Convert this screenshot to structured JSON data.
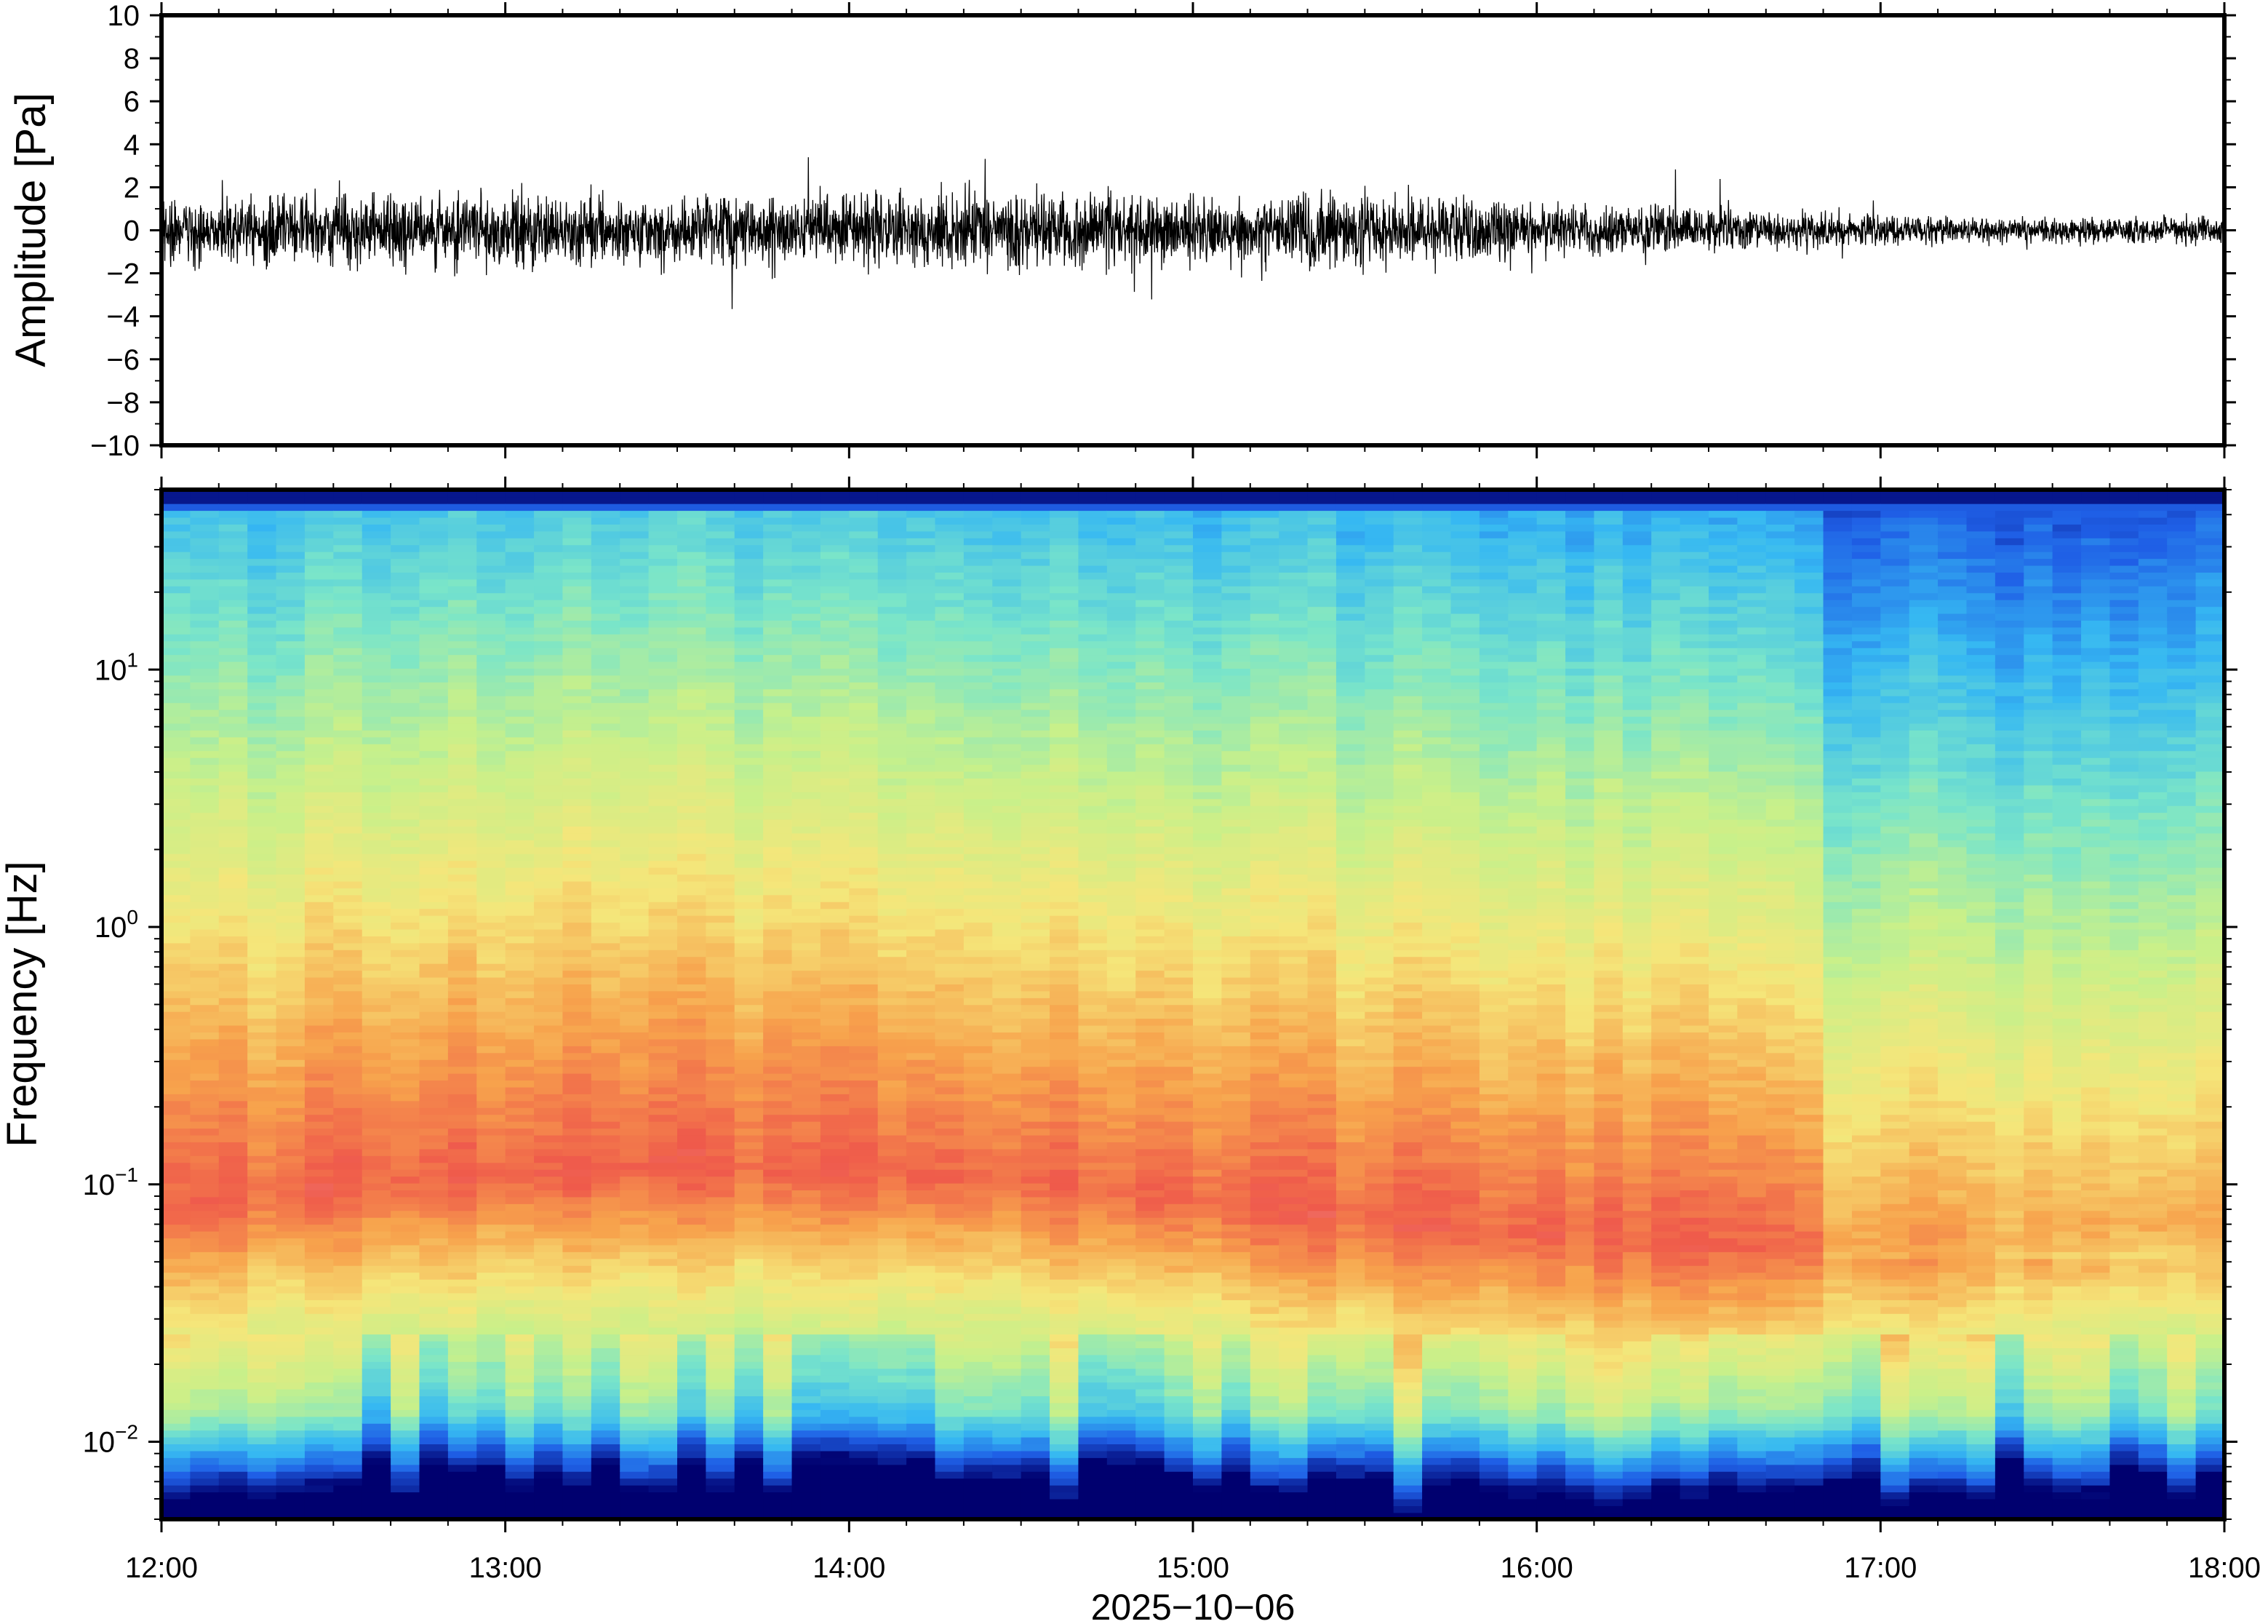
{
  "figure": {
    "date_label": "2025−10−06"
  },
  "chart_data": [
    {
      "type": "line",
      "ylabel": "Amplitude [Pa]",
      "ylim": [
        -10,
        10
      ],
      "y_ticks": [
        {
          "value": 10,
          "label": "10"
        },
        {
          "value": 8,
          "label": "8"
        },
        {
          "value": 6,
          "label": "6"
        },
        {
          "value": 4,
          "label": "4"
        },
        {
          "value": 2,
          "label": "2"
        },
        {
          "value": 0,
          "label": "0"
        },
        {
          "value": -2,
          "label": "−2"
        },
        {
          "value": -4,
          "label": "−4"
        },
        {
          "value": -6,
          "label": "−6"
        },
        {
          "value": -8,
          "label": "−8"
        },
        {
          "value": -10,
          "label": "−10"
        }
      ],
      "xlim": [
        "12:00",
        "18:00"
      ],
      "series": [
        {
          "values": "waveform",
          "x": [
            "12:00",
            "12:30",
            "13:00",
            "13:30",
            "14:00",
            "14:30",
            "15:00",
            "15:30",
            "16:00",
            "16:30",
            "17:00",
            "17:30",
            "18:00"
          ],
          "envelope_pa": [
            1.6,
            1.8,
            1.8,
            1.6,
            1.7,
            2.0,
            1.7,
            1.9,
            1.4,
            1.2,
            0.7,
            0.6,
            0.7
          ],
          "peak_pa": [
            2.7,
            3.1,
            2.9,
            2.3,
            2.6,
            3.0,
            2.8,
            3.0,
            2.0,
            1.8,
            1.0,
            0.9,
            1.2
          ]
        }
      ]
    },
    {
      "type": "heatmap",
      "ylabel": "Frequency [Hz]",
      "y_scale": "log",
      "ylim": [
        0.005,
        50
      ],
      "y_ticks": [
        {
          "value": 10,
          "base": "10",
          "exp": "1"
        },
        {
          "value": 1,
          "base": "10",
          "exp": "0"
        },
        {
          "value": 0.1,
          "base": "10",
          "exp": "−1"
        },
        {
          "value": 0.01,
          "base": "10",
          "exp": "−2"
        }
      ],
      "x_ticks": [
        "12:00",
        "13:00",
        "14:00",
        "15:00",
        "16:00",
        "17:00",
        "18:00"
      ],
      "xlim": [
        "12:00",
        "18:00"
      ],
      "colormap": "spectral (blue → cyan → yellow → red)",
      "colors": [
        "#00006f",
        "#1f5fe6",
        "#36b8f2",
        "#7ae5c9",
        "#c8f08a",
        "#f5e67a",
        "#f7a24c",
        "#ef5a4b",
        "#f08c8c"
      ],
      "peak_band_hz": [
        0.04,
        0.3
      ]
    }
  ]
}
